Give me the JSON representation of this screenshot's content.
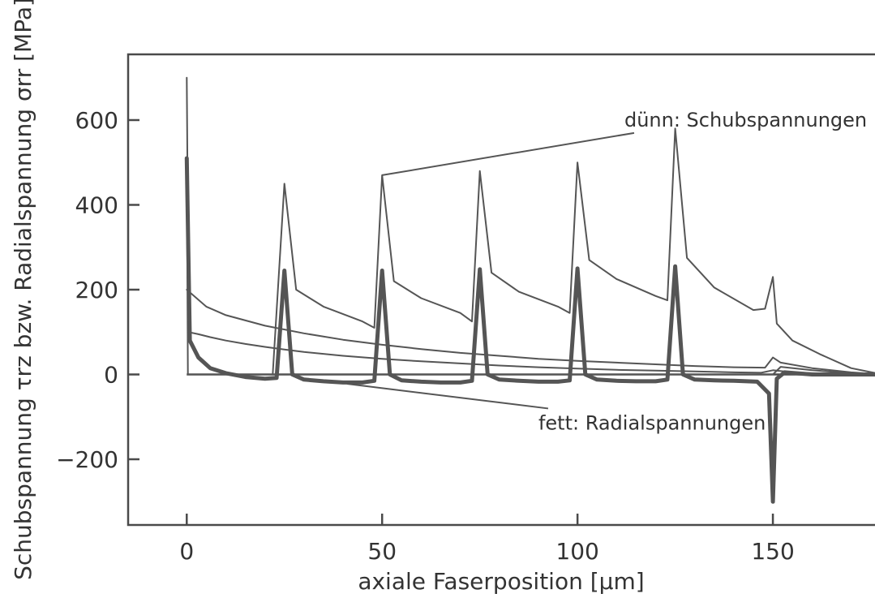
{
  "chart_data": {
    "type": "line",
    "xlabel": "axiale Faserposition [µm]",
    "ylabel": "Schubspannung τrz bzw. Radialspannung σrr [MPa]",
    "xlim": [
      -15,
      178
    ],
    "ylim": [
      -355,
      755
    ],
    "x_ticks": [
      0,
      50,
      100,
      150
    ],
    "y_ticks": [
      -200,
      0,
      200,
      400,
      600
    ],
    "x_tick_labels": [
      "0",
      "50",
      "100",
      "150"
    ],
    "y_tick_labels": [
      "−200",
      "0",
      "200",
      "400",
      "600"
    ],
    "grid": false,
    "legend": "none",
    "annotations": [
      {
        "text": "dünn: Schubspannungen",
        "x": 112,
        "y": 585,
        "target_x": 50,
        "target_y": 470
      },
      {
        "text": "fett: Radialspannungen",
        "x": 90,
        "y": -130,
        "target_x": 41,
        "target_y": -22
      }
    ],
    "series": [
      {
        "style": "thin",
        "points": [
          [
            0,
            700
          ],
          [
            0.5,
            100
          ],
          [
            3,
            95
          ],
          [
            6,
            88
          ],
          [
            10,
            80
          ],
          [
            15,
            72
          ],
          [
            20,
            65
          ],
          [
            25,
            59
          ],
          [
            30,
            53
          ],
          [
            40,
            44
          ],
          [
            50,
            37
          ],
          [
            60,
            31
          ],
          [
            70,
            26
          ],
          [
            80,
            21
          ],
          [
            90,
            17
          ],
          [
            100,
            14
          ],
          [
            110,
            11
          ],
          [
            120,
            9
          ],
          [
            130,
            7
          ],
          [
            140,
            5
          ],
          [
            147,
            4
          ],
          [
            150,
            10
          ],
          [
            155,
            5
          ],
          [
            160,
            3
          ],
          [
            170,
            1
          ],
          [
            178,
            0
          ]
        ]
      },
      {
        "style": "thin",
        "points": [
          [
            0,
            200
          ],
          [
            5,
            160
          ],
          [
            10,
            140
          ],
          [
            20,
            115
          ],
          [
            30,
            97
          ],
          [
            40,
            82
          ],
          [
            50,
            70
          ],
          [
            60,
            60
          ],
          [
            70,
            51
          ],
          [
            80,
            44
          ],
          [
            90,
            37
          ],
          [
            100,
            32
          ],
          [
            110,
            28
          ],
          [
            120,
            24
          ],
          [
            130,
            20
          ],
          [
            140,
            17
          ],
          [
            148,
            16
          ],
          [
            150,
            40
          ],
          [
            152,
            28
          ],
          [
            160,
            15
          ],
          [
            170,
            5
          ],
          [
            178,
            0
          ]
        ]
      },
      {
        "style": "thin",
        "points": [
          [
            0,
            500
          ],
          [
            0.3,
            0
          ],
          [
            22,
            0
          ],
          [
            25,
            450
          ],
          [
            28,
            200
          ],
          [
            35,
            160
          ],
          [
            45,
            125
          ],
          [
            48,
            110
          ],
          [
            50,
            470
          ],
          [
            53,
            220
          ],
          [
            60,
            180
          ],
          [
            70,
            145
          ],
          [
            73,
            125
          ],
          [
            75,
            480
          ],
          [
            78,
            240
          ],
          [
            85,
            195
          ],
          [
            95,
            160
          ],
          [
            98,
            145
          ],
          [
            100,
            500
          ],
          [
            103,
            270
          ],
          [
            110,
            225
          ],
          [
            120,
            185
          ],
          [
            123,
            175
          ],
          [
            125,
            580
          ],
          [
            128,
            275
          ],
          [
            135,
            205
          ],
          [
            145,
            152
          ],
          [
            148,
            155
          ],
          [
            150,
            230
          ],
          [
            151,
            120
          ],
          [
            155,
            80
          ],
          [
            162,
            48
          ],
          [
            170,
            15
          ],
          [
            178,
            0
          ]
        ]
      },
      {
        "style": "thin",
        "points": [
          [
            1,
            0
          ],
          [
            10,
            0
          ],
          [
            20,
            0
          ],
          [
            30,
            0
          ],
          [
            40,
            0
          ],
          [
            50,
            0
          ],
          [
            60,
            0
          ],
          [
            70,
            0
          ],
          [
            80,
            0
          ],
          [
            90,
            0
          ],
          [
            100,
            0
          ],
          [
            110,
            0
          ],
          [
            120,
            0
          ],
          [
            130,
            0
          ],
          [
            140,
            0
          ],
          [
            148,
            0
          ],
          [
            150,
            0
          ],
          [
            152,
            18
          ],
          [
            160,
            10
          ],
          [
            170,
            3
          ],
          [
            178,
            0
          ]
        ]
      },
      {
        "style": "thick",
        "points": [
          [
            0,
            510
          ],
          [
            0.8,
            80
          ],
          [
            3,
            40
          ],
          [
            6,
            15
          ],
          [
            10,
            3
          ],
          [
            15,
            -6
          ],
          [
            20,
            -10
          ],
          [
            23,
            -8
          ],
          [
            25,
            245
          ],
          [
            27,
            0
          ],
          [
            30,
            -12
          ],
          [
            35,
            -16
          ],
          [
            40,
            -19
          ],
          [
            45,
            -19
          ],
          [
            48,
            -15
          ],
          [
            50,
            245
          ],
          [
            52,
            0
          ],
          [
            55,
            -14
          ],
          [
            60,
            -17
          ],
          [
            65,
            -19
          ],
          [
            70,
            -19
          ],
          [
            73,
            -15
          ],
          [
            75,
            248
          ],
          [
            77,
            0
          ],
          [
            80,
            -12
          ],
          [
            85,
            -15
          ],
          [
            90,
            -17
          ],
          [
            95,
            -17
          ],
          [
            98,
            -14
          ],
          [
            100,
            250
          ],
          [
            102,
            0
          ],
          [
            105,
            -12
          ],
          [
            110,
            -15
          ],
          [
            115,
            -16
          ],
          [
            120,
            -16
          ],
          [
            123,
            -12
          ],
          [
            125,
            255
          ],
          [
            127,
            0
          ],
          [
            130,
            -12
          ],
          [
            135,
            -14
          ],
          [
            140,
            -15
          ],
          [
            146,
            -17
          ],
          [
            149,
            -45
          ],
          [
            150,
            -300
          ],
          [
            151,
            -10
          ],
          [
            153,
            5
          ],
          [
            160,
            0
          ],
          [
            170,
            0
          ],
          [
            178,
            0
          ]
        ]
      }
    ]
  }
}
